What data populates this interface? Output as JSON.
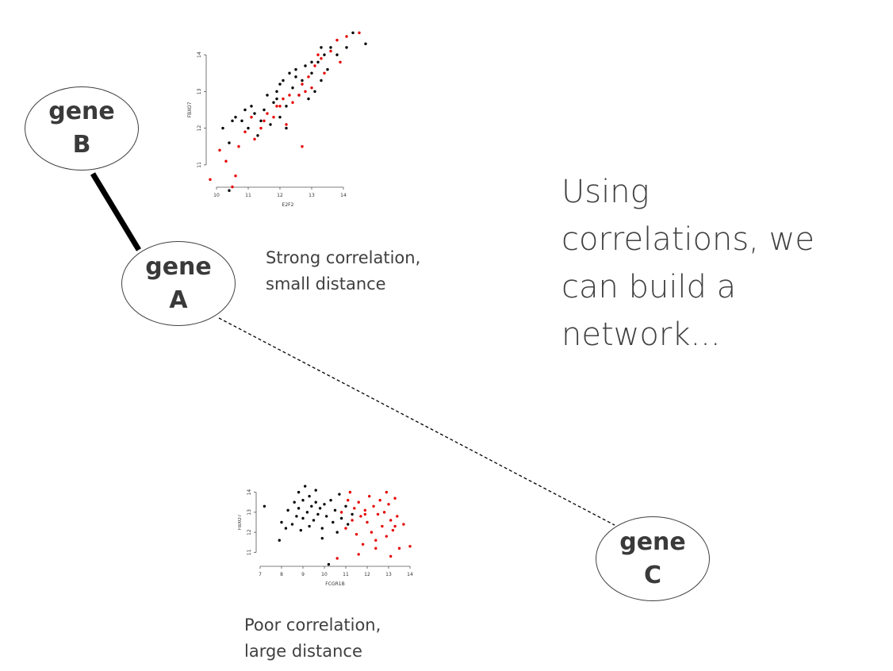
{
  "nodes": {
    "b": {
      "line1": "gene",
      "line2": "B"
    },
    "a": {
      "line1": "gene",
      "line2": "A"
    },
    "c": {
      "line1": "gene",
      "line2": "C"
    }
  },
  "captions": {
    "strong": {
      "line1": "Strong correlation,",
      "line2": "small distance"
    },
    "poor": {
      "line1": "Poor correlation,",
      "line2": "large distance"
    }
  },
  "headline": {
    "line1": "Using",
    "line2": "correlations, we",
    "line3": "can build a",
    "line4": "network..."
  },
  "colors": {
    "text": "#404040",
    "red": "#e60000",
    "black": "#000000"
  },
  "chart_data": [
    {
      "type": "scatter",
      "title": "",
      "xlabel": "E2F2",
      "ylabel": "FBXO7",
      "xlim": [
        9.8,
        14.7
      ],
      "ylim": [
        10.5,
        14.5
      ],
      "xticks": [
        "10",
        "11",
        "12",
        "13",
        "14"
      ],
      "yticks": [
        "11",
        "12",
        "13",
        "14"
      ],
      "series": [
        {
          "color": "#000000",
          "points": [
            [
              10.4,
              10.3
            ],
            [
              10.2,
              12.0
            ],
            [
              10.4,
              11.6
            ],
            [
              10.5,
              12.2
            ],
            [
              10.6,
              12.3
            ],
            [
              10.8,
              12.2
            ],
            [
              10.9,
              12.5
            ],
            [
              11.0,
              12.0
            ],
            [
              11.1,
              12.6
            ],
            [
              11.2,
              12.4
            ],
            [
              11.3,
              11.8
            ],
            [
              11.4,
              12.2
            ],
            [
              11.5,
              12.5
            ],
            [
              11.6,
              12.9
            ],
            [
              11.7,
              12.1
            ],
            [
              11.8,
              12.7
            ],
            [
              11.9,
              13.0
            ],
            [
              12.0,
              13.2
            ],
            [
              12.1,
              13.3
            ],
            [
              12.2,
              12.6
            ],
            [
              12.3,
              13.5
            ],
            [
              12.4,
              13.1
            ],
            [
              12.5,
              13.6
            ],
            [
              12.6,
              12.9
            ],
            [
              12.7,
              13.3
            ],
            [
              12.8,
              13.7
            ],
            [
              12.9,
              12.8
            ],
            [
              13.0,
              13.5
            ],
            [
              13.1,
              13.0
            ],
            [
              13.2,
              13.8
            ],
            [
              13.3,
              13.3
            ],
            [
              13.4,
              14.0
            ],
            [
              13.5,
              13.6
            ],
            [
              13.6,
              14.2
            ],
            [
              13.8,
              14.0
            ],
            [
              14.1,
              14.2
            ],
            [
              14.3,
              14.6
            ],
            [
              14.7,
              14.3
            ],
            [
              12.2,
              12.0
            ],
            [
              12.0,
              12.3
            ],
            [
              11.9,
              12.8
            ],
            [
              12.5,
              13.4
            ],
            [
              13.0,
              13.8
            ],
            [
              13.3,
              14.2
            ]
          ]
        },
        {
          "color": "#e60000",
          "points": [
            [
              9.8,
              10.6
            ],
            [
              10.1,
              11.4
            ],
            [
              10.3,
              11.1
            ],
            [
              10.5,
              10.4
            ],
            [
              10.6,
              10.7
            ],
            [
              10.7,
              11.5
            ],
            [
              10.9,
              11.9
            ],
            [
              11.1,
              12.3
            ],
            [
              11.2,
              11.7
            ],
            [
              11.4,
              12.0
            ],
            [
              11.6,
              12.4
            ],
            [
              11.8,
              12.3
            ],
            [
              11.9,
              12.6
            ],
            [
              12.1,
              12.8
            ],
            [
              12.3,
              12.9
            ],
            [
              12.4,
              12.7
            ],
            [
              12.6,
              12.9
            ],
            [
              12.7,
              13.2
            ],
            [
              12.9,
              13.4
            ],
            [
              13.0,
              13.1
            ],
            [
              13.1,
              13.7
            ],
            [
              13.3,
              13.9
            ],
            [
              13.4,
              13.5
            ],
            [
              13.6,
              14.1
            ],
            [
              13.8,
              14.4
            ],
            [
              13.9,
              13.8
            ],
            [
              14.1,
              14.5
            ],
            [
              14.5,
              14.6
            ],
            [
              12.7,
              11.5
            ],
            [
              12.2,
              12.1
            ],
            [
              11.5,
              12.2
            ],
            [
              12.0,
              12.6
            ],
            [
              13.2,
              14.0
            ],
            [
              12.8,
              13.0
            ]
          ]
        }
      ]
    },
    {
      "type": "scatter",
      "title": "",
      "xlabel": "FCGR1B",
      "ylabel": "FBXO7",
      "xlim": [
        7,
        14
      ],
      "ylim": [
        10.5,
        14.5
      ],
      "xticks": [
        "7",
        "8",
        "9",
        "10",
        "11",
        "12",
        "13",
        "14"
      ],
      "yticks": [
        "11",
        "12",
        "13",
        "14"
      ],
      "series": [
        {
          "color": "#000000",
          "points": [
            [
              7.2,
              13.3
            ],
            [
              7.9,
              11.6
            ],
            [
              8.0,
              12.5
            ],
            [
              8.3,
              13.1
            ],
            [
              8.5,
              12.4
            ],
            [
              8.6,
              13.5
            ],
            [
              8.7,
              12.8
            ],
            [
              8.8,
              13.2
            ],
            [
              8.9,
              12.1
            ],
            [
              9.0,
              13.6
            ],
            [
              9.0,
              12.7
            ],
            [
              9.1,
              14.3
            ],
            [
              9.2,
              13.0
            ],
            [
              9.3,
              12.3
            ],
            [
              9.3,
              13.8
            ],
            [
              9.4,
              13.3
            ],
            [
              9.5,
              12.6
            ],
            [
              9.6,
              13.5
            ],
            [
              9.7,
              12.9
            ],
            [
              9.8,
              13.2
            ],
            [
              9.9,
              12.2
            ],
            [
              10.0,
              13.4
            ],
            [
              10.1,
              12.8
            ],
            [
              10.2,
              10.4
            ],
            [
              10.3,
              13.6
            ],
            [
              10.4,
              12.5
            ],
            [
              10.5,
              13.1
            ],
            [
              10.6,
              12.0
            ],
            [
              10.7,
              13.9
            ],
            [
              10.8,
              12.7
            ],
            [
              11.0,
              13.3
            ],
            [
              11.1,
              12.4
            ],
            [
              11.3,
              12.9
            ],
            [
              9.6,
              14.1
            ],
            [
              8.8,
              14.0
            ],
            [
              9.9,
              11.7
            ],
            [
              8.2,
              12.2
            ]
          ]
        },
        {
          "color": "#e60000",
          "points": [
            [
              10.6,
              10.7
            ],
            [
              10.8,
              13.0
            ],
            [
              11.0,
              12.2
            ],
            [
              11.1,
              13.6
            ],
            [
              11.2,
              14.0
            ],
            [
              11.3,
              12.6
            ],
            [
              11.4,
              13.2
            ],
            [
              11.5,
              11.9
            ],
            [
              11.6,
              13.5
            ],
            [
              11.7,
              12.8
            ],
            [
              11.8,
              11.4
            ],
            [
              11.9,
              13.1
            ],
            [
              12.0,
              12.5
            ],
            [
              12.1,
              13.8
            ],
            [
              12.2,
              12.0
            ],
            [
              12.3,
              13.3
            ],
            [
              12.4,
              11.6
            ],
            [
              12.5,
              12.9
            ],
            [
              12.6,
              13.6
            ],
            [
              12.7,
              12.3
            ],
            [
              12.8,
              13.0
            ],
            [
              12.9,
              11.8
            ],
            [
              13.0,
              13.4
            ],
            [
              13.1,
              12.6
            ],
            [
              13.2,
              12.1
            ],
            [
              13.3,
              13.7
            ],
            [
              13.4,
              12.8
            ],
            [
              13.5,
              11.2
            ],
            [
              13.7,
              12.4
            ],
            [
              14.0,
              11.3
            ],
            [
              12.4,
              11.2
            ],
            [
              11.6,
              10.9
            ],
            [
              13.1,
              10.8
            ],
            [
              12.9,
              14.0
            ],
            [
              11.9,
              12.9
            ],
            [
              13.3,
              12.3
            ]
          ]
        }
      ]
    }
  ]
}
